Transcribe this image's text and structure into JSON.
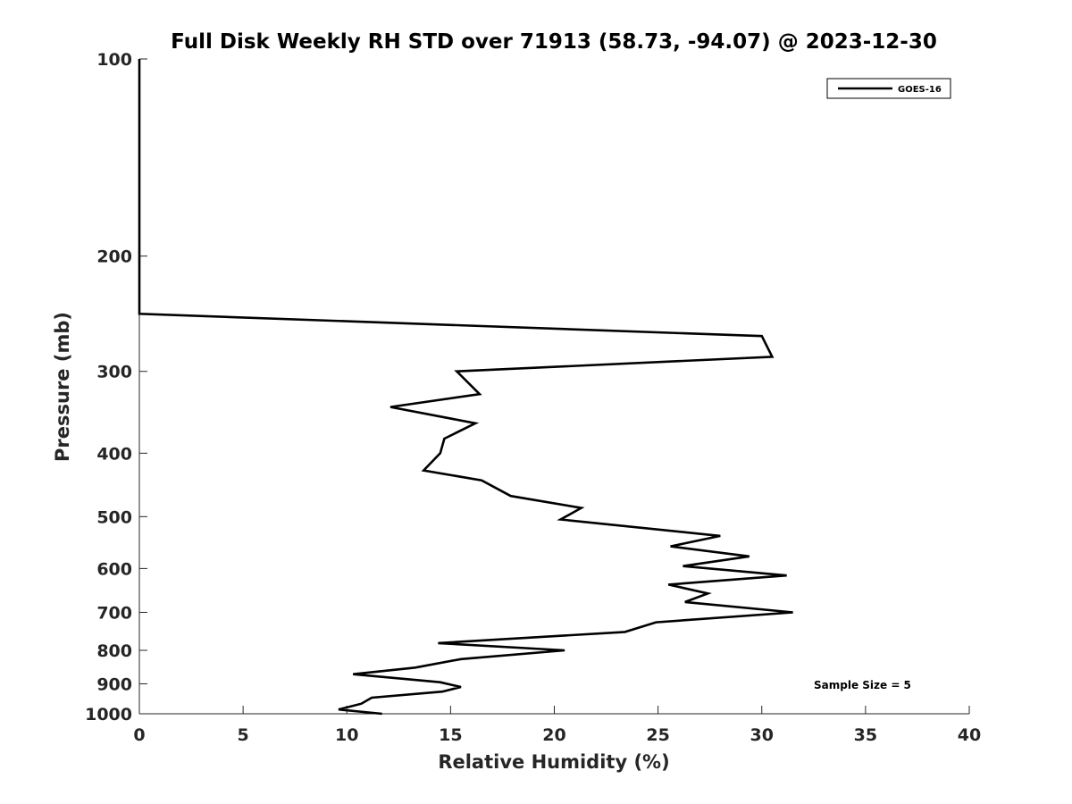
{
  "chart_data": {
    "type": "line",
    "title": "Full Disk Weekly RH STD over 71913 (58.73, -94.07) @ 2023-12-30",
    "xlabel": "Relative Humidity (%)",
    "ylabel": "Pressure (mb)",
    "xlim": [
      0,
      40
    ],
    "ylim": [
      100,
      1000
    ],
    "y_scale": "log",
    "y_reversed": true,
    "xticks": [
      0,
      5,
      10,
      15,
      20,
      25,
      30,
      35,
      40
    ],
    "yticks": [
      100,
      200,
      300,
      400,
      500,
      600,
      700,
      800,
      900,
      1000
    ],
    "grid": false,
    "legend_position": "top-right",
    "annotation": "Sample Size = 5",
    "series": [
      {
        "name": "GOES-16",
        "color": "#000000",
        "x": [
          0,
          0,
          0,
          0,
          0,
          30.0,
          30.5,
          15.3,
          16.4,
          12.1,
          16.2,
          14.7,
          14.5,
          13.7,
          16.5,
          17.9,
          21.3,
          20.3,
          28.0,
          25.6,
          29.4,
          26.2,
          31.2,
          25.5,
          27.4,
          26.3,
          31.5,
          24.9,
          23.4,
          14.4,
          20.5,
          15.5,
          13.3,
          10.3,
          14.5,
          15.5,
          14.6,
          11.2,
          10.7,
          9.6,
          11.7
        ],
        "y": [
          100,
          150,
          200,
          220,
          245,
          265,
          285,
          300,
          325,
          340,
          360,
          380,
          400,
          425,
          440,
          465,
          485,
          505,
          535,
          555,
          575,
          595,
          615,
          635,
          655,
          675,
          700,
          725,
          750,
          780,
          800,
          825,
          850,
          870,
          895,
          910,
          925,
          945,
          965,
          985,
          1000
        ]
      }
    ]
  }
}
